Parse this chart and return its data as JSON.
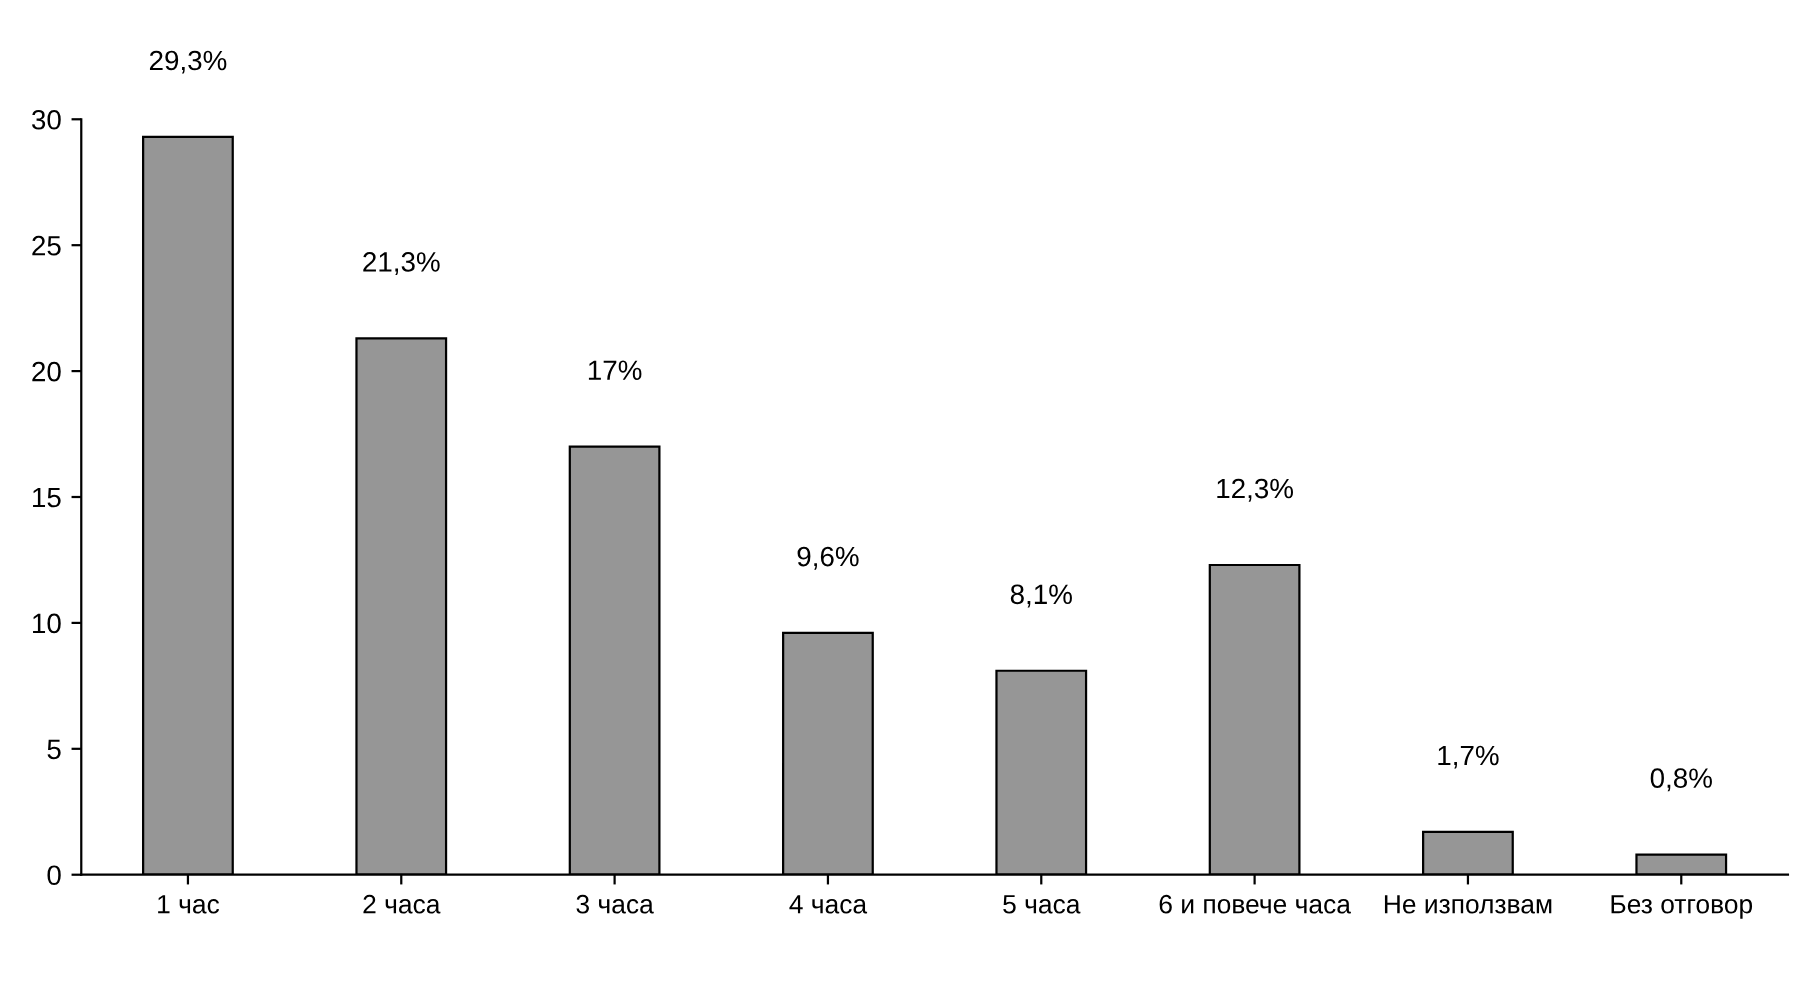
{
  "chart_data": {
    "type": "bar",
    "categories": [
      "1 час",
      "2 часа",
      "3 часа",
      "4 часа",
      "5 часа",
      "6 и повече часа",
      "Не използвам",
      "Без отговор"
    ],
    "values": [
      29.3,
      21.3,
      17,
      9.6,
      8.1,
      12.3,
      1.7,
      0.8
    ],
    "value_labels": [
      "29,3%",
      "21,3%",
      "17%",
      "9,6%",
      "8,1%",
      "12,3%",
      "1,7%",
      "0,8%"
    ],
    "color": "#969696",
    "ylim": [
      0,
      30
    ],
    "yticks": [
      0,
      5,
      10,
      15,
      20,
      25,
      30
    ],
    "grid": false
  }
}
